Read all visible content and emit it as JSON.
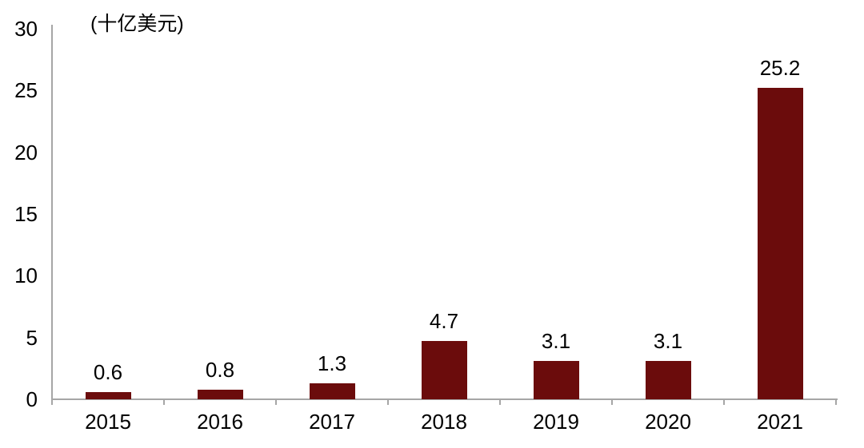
{
  "chart_data": {
    "type": "bar",
    "title": "",
    "unit_label": "(十亿美元)",
    "categories": [
      "2015",
      "2016",
      "2017",
      "2018",
      "2019",
      "2020",
      "2021"
    ],
    "values": [
      0.6,
      0.8,
      1.3,
      4.7,
      3.1,
      3.1,
      25.2
    ],
    "value_labels": [
      "0.6",
      "0.8",
      "1.3",
      "4.7",
      "3.1",
      "3.1",
      "25.2"
    ],
    "y_ticks": [
      0,
      5,
      10,
      15,
      20,
      25,
      30
    ],
    "ylim": [
      0,
      30
    ],
    "xlabel": "",
    "ylabel": "(十亿美元)",
    "grid": false,
    "legend": "none",
    "colors": {
      "bar": "#6b0c0c",
      "axis": "#a6a6a6",
      "text": "#000000",
      "background": "#ffffff"
    }
  }
}
